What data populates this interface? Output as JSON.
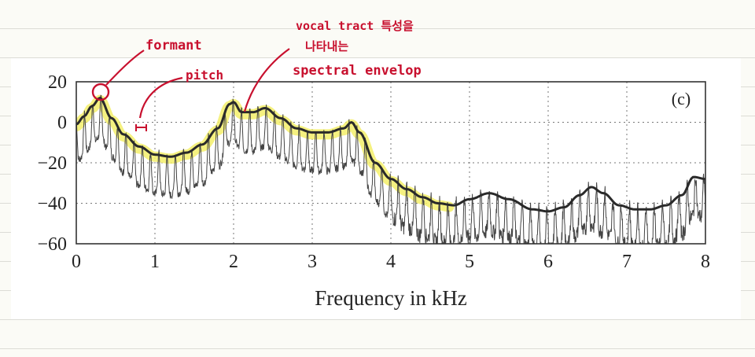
{
  "chart_data": {
    "type": "line",
    "panel_label": "(c)",
    "xlabel": "Frequency in kHz",
    "ylabel": "",
    "xlim": [
      0,
      8
    ],
    "ylim": [
      -60,
      20
    ],
    "x_ticks": [
      "0",
      "1",
      "2",
      "3",
      "4",
      "5",
      "6",
      "7",
      "8"
    ],
    "y_ticks": [
      "20",
      "0",
      "−20",
      "−40",
      "−60"
    ],
    "grid": true,
    "series": [
      {
        "role": "envelope",
        "color": "#2a2a2a",
        "x": [
          0,
          0.1,
          0.2,
          0.3,
          0.45,
          0.6,
          0.8,
          1.0,
          1.2,
          1.4,
          1.6,
          1.8,
          1.95,
          2.0,
          2.1,
          2.25,
          2.4,
          2.6,
          2.8,
          3.0,
          3.2,
          3.4,
          3.5,
          3.6,
          3.8,
          4.0,
          4.2,
          4.4,
          4.6,
          4.8,
          5.0,
          5.25,
          5.5,
          5.8,
          6.0,
          6.2,
          6.4,
          6.55,
          6.7,
          6.9,
          7.1,
          7.3,
          7.5,
          7.7,
          7.85,
          8.0
        ],
        "y": [
          -1,
          3,
          8,
          12,
          2,
          -6,
          -12,
          -16,
          -17,
          -15,
          -11,
          -3,
          9,
          10,
          5,
          5,
          7,
          2,
          -3,
          -5,
          -5,
          -3,
          0,
          -5,
          -20,
          -28,
          -33,
          -37,
          -40,
          -41,
          -38,
          -35,
          -38,
          -43,
          -44,
          -42,
          -36,
          -32,
          -35,
          -41,
          -43,
          -43,
          -41,
          -36,
          -27,
          -28
        ]
      },
      {
        "role": "spectrum",
        "color": "#444444",
        "pitch_khz": 0.105,
        "notch_depth_db": 20
      },
      {
        "role": "highlight",
        "color": "#f3ee6a",
        "x_range": [
          0,
          4.75
        ]
      }
    ]
  },
  "annotations": {
    "formant": "formant",
    "pitch": "pitch",
    "envelope_line1": "vocal tract 특성을",
    "envelope_line2": "나타내는",
    "envelope_line3": "spectral envelop"
  },
  "colors": {
    "ink": "#c8102e",
    "highlight": "#f3ee6a"
  }
}
